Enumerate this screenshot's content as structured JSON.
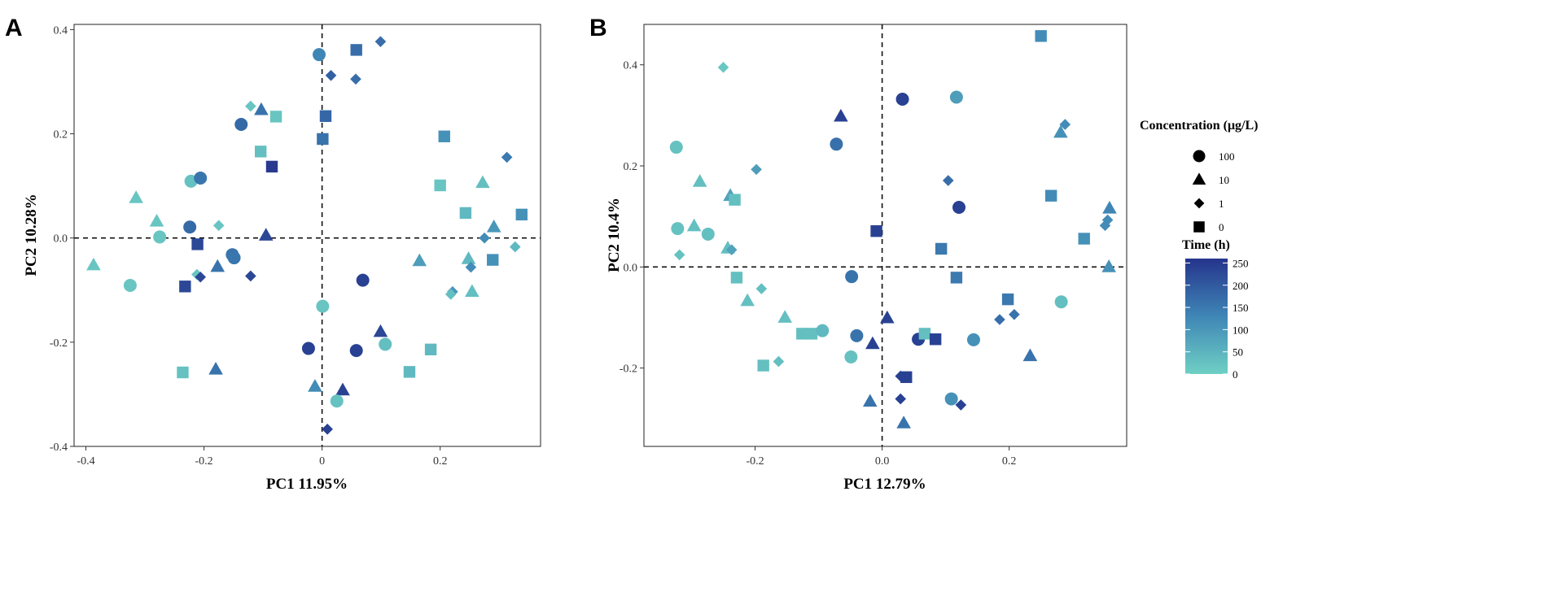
{
  "palette": {
    "t0": "#6fd0c4",
    "t_mid": "#3f86b6",
    "t_max": "#25348c"
  },
  "panels": [
    "A",
    "B"
  ],
  "legend": {
    "concentration_title": "Concentration (μg/L)",
    "concentration": [
      {
        "label": "100",
        "shape": "circle"
      },
      {
        "label": "10",
        "shape": "triangle"
      },
      {
        "label": "1",
        "shape": "diamond"
      },
      {
        "label": "0",
        "shape": "square"
      }
    ],
    "time_title": "Time (h)",
    "time_ticks": [
      "250",
      "200",
      "150",
      "100",
      "50",
      "0"
    ],
    "time_range": [
      0,
      260
    ]
  },
  "chart_data": [
    {
      "type": "scatter",
      "panel": "A",
      "xlabel": "PC1 11.95%",
      "ylabel": "PC2 10.28%",
      "xlim": [
        -0.42,
        0.37
      ],
      "ylim": [
        -0.4,
        0.41
      ],
      "xticks": [
        -0.4,
        -0.2,
        0.0,
        0.2
      ],
      "xtick_labels": [
        "-0.4",
        "-0.2",
        "0",
        "0.2"
      ],
      "yticks": [
        -0.4,
        -0.2,
        0.0,
        0.2,
        0.4
      ],
      "ytick_labels": [
        "-0.4",
        "-0.2",
        "0.0",
        "0.2",
        "0.4"
      ],
      "reference_lines": {
        "x": 0,
        "y": 0
      },
      "points": [
        {
          "x": -0.005,
          "y": 0.352,
          "shape": "circle",
          "time": 130
        },
        {
          "x": 0.058,
          "y": 0.361,
          "shape": "square",
          "time": 170
        },
        {
          "x": 0.099,
          "y": 0.377,
          "shape": "diamond",
          "time": 170
        },
        {
          "x": 0.015,
          "y": 0.312,
          "shape": "diamond",
          "time": 190
        },
        {
          "x": 0.057,
          "y": 0.305,
          "shape": "diamond",
          "time": 170
        },
        {
          "x": -0.121,
          "y": 0.253,
          "shape": "diamond",
          "time": 20
        },
        {
          "x": -0.103,
          "y": 0.246,
          "shape": "triangle",
          "time": 160
        },
        {
          "x": -0.137,
          "y": 0.218,
          "shape": "circle",
          "time": 175
        },
        {
          "x": -0.078,
          "y": 0.233,
          "shape": "square",
          "time": 20
        },
        {
          "x": 0.006,
          "y": 0.234,
          "shape": "square",
          "time": 180
        },
        {
          "x": 0.001,
          "y": 0.19,
          "shape": "square",
          "time": 160
        },
        {
          "x": -0.104,
          "y": 0.166,
          "shape": "square",
          "time": 30
        },
        {
          "x": -0.085,
          "y": 0.137,
          "shape": "square",
          "time": 250
        },
        {
          "x": -0.222,
          "y": 0.109,
          "shape": "circle",
          "time": 25
        },
        {
          "x": -0.206,
          "y": 0.115,
          "shape": "circle",
          "time": 155
        },
        {
          "x": -0.315,
          "y": 0.077,
          "shape": "triangle",
          "time": 20
        },
        {
          "x": -0.28,
          "y": 0.032,
          "shape": "triangle",
          "time": 20
        },
        {
          "x": -0.275,
          "y": 0.002,
          "shape": "circle",
          "time": 20
        },
        {
          "x": -0.224,
          "y": 0.021,
          "shape": "circle",
          "time": 175
        },
        {
          "x": -0.211,
          "y": -0.012,
          "shape": "square",
          "time": 230
        },
        {
          "x": -0.175,
          "y": 0.024,
          "shape": "diamond",
          "time": 20
        },
        {
          "x": -0.152,
          "y": -0.032,
          "shape": "circle",
          "time": 160
        },
        {
          "x": -0.149,
          "y": -0.038,
          "shape": "circle",
          "time": 155
        },
        {
          "x": -0.095,
          "y": 0.005,
          "shape": "triangle",
          "time": 230
        },
        {
          "x": -0.387,
          "y": -0.052,
          "shape": "triangle",
          "time": 20
        },
        {
          "x": -0.325,
          "y": -0.091,
          "shape": "circle",
          "time": 20
        },
        {
          "x": -0.232,
          "y": -0.093,
          "shape": "square",
          "time": 230
        },
        {
          "x": -0.212,
          "y": -0.07,
          "shape": "diamond",
          "time": 20
        },
        {
          "x": -0.206,
          "y": -0.075,
          "shape": "diamond",
          "time": 230
        },
        {
          "x": -0.177,
          "y": -0.055,
          "shape": "triangle",
          "time": 160
        },
        {
          "x": -0.121,
          "y": -0.073,
          "shape": "diamond",
          "time": 230
        },
        {
          "x": 0.001,
          "y": -0.131,
          "shape": "circle",
          "time": 20
        },
        {
          "x": 0.069,
          "y": -0.081,
          "shape": "circle",
          "time": 240
        },
        {
          "x": -0.236,
          "y": -0.258,
          "shape": "square",
          "time": 25
        },
        {
          "x": -0.18,
          "y": -0.252,
          "shape": "triangle",
          "time": 160
        },
        {
          "x": -0.023,
          "y": -0.212,
          "shape": "circle",
          "time": 240
        },
        {
          "x": 0.058,
          "y": -0.216,
          "shape": "circle",
          "time": 240
        },
        {
          "x": 0.099,
          "y": -0.18,
          "shape": "triangle",
          "time": 230
        },
        {
          "x": 0.107,
          "y": -0.204,
          "shape": "circle",
          "time": 30
        },
        {
          "x": -0.012,
          "y": -0.285,
          "shape": "triangle",
          "time": 120
        },
        {
          "x": 0.035,
          "y": -0.292,
          "shape": "triangle",
          "time": 240
        },
        {
          "x": 0.025,
          "y": -0.313,
          "shape": "circle",
          "time": 25
        },
        {
          "x": 0.009,
          "y": -0.367,
          "shape": "diamond",
          "time": 240
        },
        {
          "x": 0.207,
          "y": 0.195,
          "shape": "square",
          "time": 110
        },
        {
          "x": 0.2,
          "y": 0.101,
          "shape": "square",
          "time": 20
        },
        {
          "x": 0.313,
          "y": 0.155,
          "shape": "diamond",
          "time": 150
        },
        {
          "x": 0.272,
          "y": 0.106,
          "shape": "triangle",
          "time": 30
        },
        {
          "x": 0.243,
          "y": 0.048,
          "shape": "square",
          "time": 40
        },
        {
          "x": 0.338,
          "y": 0.045,
          "shape": "square",
          "time": 110
        },
        {
          "x": 0.291,
          "y": 0.021,
          "shape": "triangle",
          "time": 100
        },
        {
          "x": 0.275,
          "y": 0.0,
          "shape": "diamond",
          "time": 120
        },
        {
          "x": 0.327,
          "y": -0.017,
          "shape": "diamond",
          "time": 40
        },
        {
          "x": 0.165,
          "y": -0.044,
          "shape": "triangle",
          "time": 90
        },
        {
          "x": 0.248,
          "y": -0.04,
          "shape": "triangle",
          "time": 40
        },
        {
          "x": 0.289,
          "y": -0.042,
          "shape": "square",
          "time": 110
        },
        {
          "x": 0.252,
          "y": -0.056,
          "shape": "diamond",
          "time": 120
        },
        {
          "x": 0.221,
          "y": -0.103,
          "shape": "diamond",
          "time": 100
        },
        {
          "x": 0.218,
          "y": -0.108,
          "shape": "diamond",
          "time": 30
        },
        {
          "x": 0.254,
          "y": -0.103,
          "shape": "triangle",
          "time": 30
        },
        {
          "x": 0.184,
          "y": -0.214,
          "shape": "square",
          "time": 40
        },
        {
          "x": 0.148,
          "y": -0.257,
          "shape": "square",
          "time": 40
        }
      ]
    },
    {
      "type": "scatter",
      "panel": "B",
      "xlabel": "PC1 12.79%",
      "ylabel": "PC2 10.4%",
      "xlim": [
        -0.375,
        0.385
      ],
      "ylim": [
        -0.355,
        0.48
      ],
      "xticks": [
        -0.2,
        0.0,
        0.2
      ],
      "xtick_labels": [
        "-0.2",
        "0.0",
        "0.2"
      ],
      "yticks": [
        -0.2,
        0.0,
        0.2,
        0.4
      ],
      "ytick_labels": [
        "-0.2",
        "0.0",
        "0.2",
        "0.4"
      ],
      "reference_lines": {
        "x": 0,
        "y": 0
      },
      "points": [
        {
          "x": -0.25,
          "y": 0.395,
          "shape": "diamond",
          "time": 15
        },
        {
          "x": 0.25,
          "y": 0.457,
          "shape": "square",
          "time": 120
        },
        {
          "x": 0.032,
          "y": 0.332,
          "shape": "circle",
          "time": 240
        },
        {
          "x": 0.117,
          "y": 0.336,
          "shape": "circle",
          "time": 90
        },
        {
          "x": -0.065,
          "y": 0.298,
          "shape": "triangle",
          "time": 240
        },
        {
          "x": -0.072,
          "y": 0.243,
          "shape": "circle",
          "time": 165
        },
        {
          "x": 0.288,
          "y": 0.282,
          "shape": "diamond",
          "time": 120
        },
        {
          "x": 0.281,
          "y": 0.266,
          "shape": "triangle",
          "time": 110
        },
        {
          "x": -0.324,
          "y": 0.237,
          "shape": "circle",
          "time": 25
        },
        {
          "x": -0.198,
          "y": 0.193,
          "shape": "diamond",
          "time": 90
        },
        {
          "x": -0.287,
          "y": 0.169,
          "shape": "triangle",
          "time": 30
        },
        {
          "x": 0.104,
          "y": 0.171,
          "shape": "diamond",
          "time": 170
        },
        {
          "x": -0.239,
          "y": 0.141,
          "shape": "triangle",
          "time": 80
        },
        {
          "x": -0.232,
          "y": 0.133,
          "shape": "square",
          "time": 30
        },
        {
          "x": 0.266,
          "y": 0.141,
          "shape": "square",
          "time": 120
        },
        {
          "x": 0.121,
          "y": 0.118,
          "shape": "circle",
          "time": 240
        },
        {
          "x": 0.358,
          "y": 0.116,
          "shape": "triangle",
          "time": 130
        },
        {
          "x": 0.355,
          "y": 0.093,
          "shape": "diamond",
          "time": 120
        },
        {
          "x": 0.351,
          "y": 0.082,
          "shape": "diamond",
          "time": 120
        },
        {
          "x": -0.296,
          "y": 0.081,
          "shape": "triangle",
          "time": 30
        },
        {
          "x": -0.322,
          "y": 0.076,
          "shape": "circle",
          "time": 25
        },
        {
          "x": -0.274,
          "y": 0.065,
          "shape": "circle",
          "time": 30
        },
        {
          "x": -0.009,
          "y": 0.071,
          "shape": "square",
          "time": 240
        },
        {
          "x": 0.318,
          "y": 0.056,
          "shape": "square",
          "time": 110
        },
        {
          "x": -0.243,
          "y": 0.037,
          "shape": "triangle",
          "time": 30
        },
        {
          "x": -0.237,
          "y": 0.034,
          "shape": "diamond",
          "time": 80
        },
        {
          "x": -0.319,
          "y": 0.024,
          "shape": "diamond",
          "time": 25
        },
        {
          "x": 0.093,
          "y": 0.036,
          "shape": "square",
          "time": 150
        },
        {
          "x": 0.357,
          "y": 0.0,
          "shape": "triangle",
          "time": 110
        },
        {
          "x": -0.229,
          "y": -0.021,
          "shape": "square",
          "time": 30
        },
        {
          "x": -0.048,
          "y": -0.019,
          "shape": "circle",
          "time": 160
        },
        {
          "x": 0.117,
          "y": -0.021,
          "shape": "square",
          "time": 150
        },
        {
          "x": -0.19,
          "y": -0.043,
          "shape": "diamond",
          "time": 30
        },
        {
          "x": -0.212,
          "y": -0.067,
          "shape": "triangle",
          "time": 30
        },
        {
          "x": 0.198,
          "y": -0.064,
          "shape": "square",
          "time": 150
        },
        {
          "x": 0.282,
          "y": -0.069,
          "shape": "circle",
          "time": 30
        },
        {
          "x": -0.153,
          "y": -0.1,
          "shape": "triangle",
          "time": 30
        },
        {
          "x": 0.008,
          "y": -0.101,
          "shape": "triangle",
          "time": 240
        },
        {
          "x": 0.208,
          "y": -0.094,
          "shape": "diamond",
          "time": 160
        },
        {
          "x": 0.185,
          "y": -0.104,
          "shape": "diamond",
          "time": 170
        },
        {
          "x": -0.126,
          "y": -0.132,
          "shape": "square",
          "time": 30
        },
        {
          "x": -0.111,
          "y": -0.132,
          "shape": "square",
          "time": 30
        },
        {
          "x": -0.094,
          "y": -0.126,
          "shape": "circle",
          "time": 40
        },
        {
          "x": -0.04,
          "y": -0.136,
          "shape": "circle",
          "time": 160
        },
        {
          "x": -0.015,
          "y": -0.152,
          "shape": "triangle",
          "time": 240
        },
        {
          "x": 0.057,
          "y": -0.143,
          "shape": "circle",
          "time": 240
        },
        {
          "x": 0.067,
          "y": -0.132,
          "shape": "square",
          "time": 30
        },
        {
          "x": 0.084,
          "y": -0.143,
          "shape": "square",
          "time": 240
        },
        {
          "x": 0.144,
          "y": -0.144,
          "shape": "circle",
          "time": 110
        },
        {
          "x": -0.187,
          "y": -0.195,
          "shape": "square",
          "time": 30
        },
        {
          "x": -0.163,
          "y": -0.187,
          "shape": "diamond",
          "time": 30
        },
        {
          "x": -0.049,
          "y": -0.178,
          "shape": "circle",
          "time": 25
        },
        {
          "x": 0.233,
          "y": -0.176,
          "shape": "triangle",
          "time": 160
        },
        {
          "x": 0.029,
          "y": -0.216,
          "shape": "diamond",
          "time": 240
        },
        {
          "x": 0.038,
          "y": -0.218,
          "shape": "square",
          "time": 240
        },
        {
          "x": -0.019,
          "y": -0.266,
          "shape": "triangle",
          "time": 160
        },
        {
          "x": 0.029,
          "y": -0.261,
          "shape": "diamond",
          "time": 240
        },
        {
          "x": 0.109,
          "y": -0.261,
          "shape": "circle",
          "time": 110
        },
        {
          "x": 0.124,
          "y": -0.273,
          "shape": "diamond",
          "time": 240
        },
        {
          "x": 0.034,
          "y": -0.309,
          "shape": "triangle",
          "time": 160
        }
      ]
    }
  ]
}
